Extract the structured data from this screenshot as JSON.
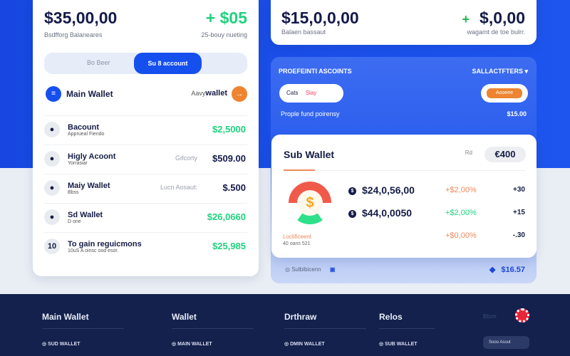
{
  "left": {
    "balance": "$35,00,00",
    "balance_label": "Bsdfforg Balaneares",
    "change": "+ $05",
    "change_label": "25-bouy nueting",
    "tabs": [
      {
        "label": "Bo Beer"
      },
      {
        "label": "Su 8 account"
      }
    ],
    "wallet_header": {
      "title": "Main Wallet",
      "link_pre": "Aavy",
      "link": "wallet"
    },
    "rows": [
      {
        "title": "Bacount",
        "sub": "Apprueal Fiendo",
        "label": "",
        "value": "$2,5000",
        "color": "#1fd27e"
      },
      {
        "title": "Higly Acoont",
        "sub": "Yorrasiar",
        "label": "Gifcorty",
        "value": "$509.00",
        "color": "#141a4a"
      },
      {
        "title": "Maiy Wallet",
        "sub": "Bbss",
        "label": "Lucn Aosaut:",
        "value": "$.500",
        "color": "#141a4a"
      },
      {
        "title": "Sd Wallet",
        "sub": "D one",
        "label": "",
        "value": "$26,0660",
        "color": "#1fd27e"
      },
      {
        "avatar": "10",
        "title": "To gain reguicmons",
        "sub": "10uS A oinsc ood esor.",
        "label": "",
        "value": "$25,985",
        "color": "#1fd27e"
      }
    ]
  },
  "right_top": {
    "balance": "$15,0,0,00",
    "balance_label": "Balaen bassaut",
    "plus": "+",
    "change": "$,0,00",
    "change_label": "wagamt de toe bulrr."
  },
  "panel": {
    "title": "PROEFEINTI ASCOINTS",
    "filter": "SALLACTFTERS",
    "chip_left_a": "Cats",
    "chip_left_b": "Slay",
    "chip_right": "Aooeee",
    "note": "Prople fund poirensy",
    "note_value": "$15.00"
  },
  "sub_wallet": {
    "title": "Sub Wallet",
    "pre": "Rd",
    "badge": "€400",
    "gauge_label": "Loclificeent",
    "gauge_sub": "40 oans 521",
    "rows": [
      {
        "value": "$24,0,56,00",
        "pct": "+$2,00%",
        "pct_color": "#ee8a5c",
        "delta": "+30"
      },
      {
        "value": "$44,0,0050",
        "pct": "+$2,00%",
        "pct_color": "#1fd27e",
        "delta": "+15"
      },
      {
        "value": "",
        "pct": "+$0,00%",
        "pct_color": "#ee8a5c",
        "delta": "-.30"
      }
    ],
    "footer_label": "Sulbibicenn",
    "footer_value": "$16.57"
  },
  "footer": {
    "cols": [
      {
        "title": "Main Wallet",
        "item": "SUD WALLET"
      },
      {
        "title": "Wallet",
        "item": "MAIN WALLET"
      },
      {
        "title": "Drthraw",
        "item": "DMIN WALLET"
      },
      {
        "title": "Relos",
        "item": "SUB WALLET"
      }
    ],
    "extra": "Btom",
    "extra_btn": "Sooo Asout"
  }
}
